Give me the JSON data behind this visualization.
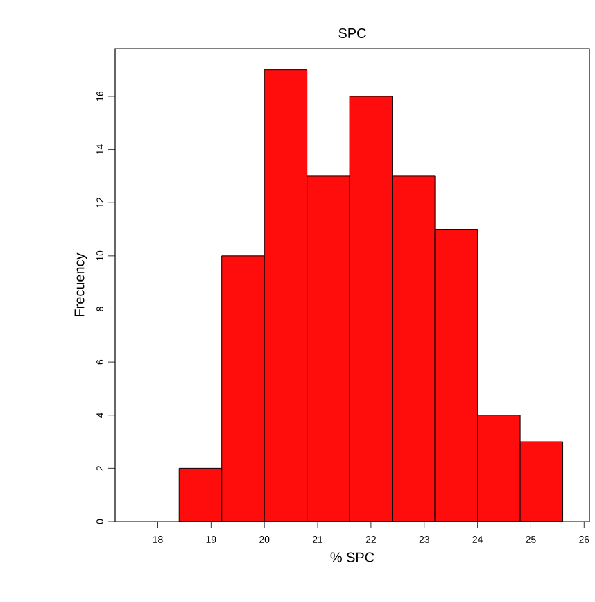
{
  "chart_data": {
    "type": "histogram",
    "title": "SPC",
    "xlabel": "% SPC",
    "ylabel": "Frecuency",
    "bins": [
      18.4,
      19.2,
      20.0,
      20.8,
      21.6,
      22.4,
      23.2,
      24.0,
      24.8,
      25.6
    ],
    "values": [
      2,
      10,
      17,
      13,
      16,
      13,
      11,
      4,
      3
    ],
    "color": "#ff0d0d",
    "xlim": [
      17.2,
      26.1
    ],
    "xticks": [
      18,
      19,
      20,
      21,
      22,
      23,
      24,
      25,
      26
    ],
    "ylim": [
      0,
      17.8
    ],
    "yticks": [
      0,
      2,
      4,
      6,
      8,
      10,
      12,
      14,
      16
    ],
    "grid": false
  }
}
